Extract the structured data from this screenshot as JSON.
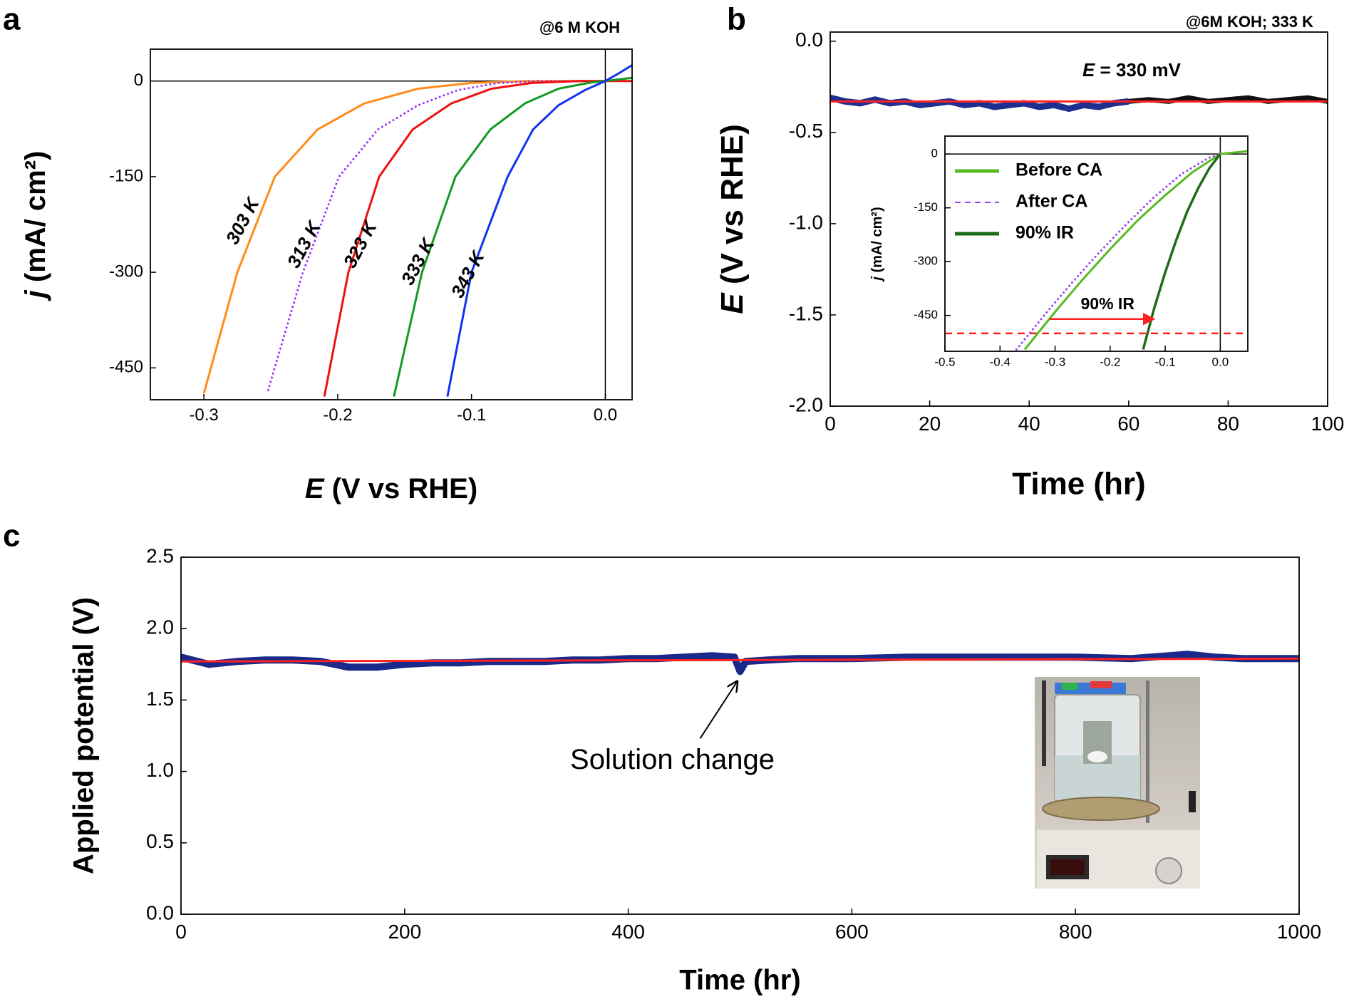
{
  "chart_data": [
    {
      "type": "line",
      "panel_label": "a",
      "title": "@6 M KOH",
      "xlabel": "E (V vs RHE)",
      "ylabel": "j (mA/ cm²)",
      "xlim": [
        -0.34,
        0.02
      ],
      "ylim": [
        -500,
        50
      ],
      "xticks": [
        -0.3,
        -0.2,
        -0.1,
        {
          "value": 0,
          "label": "0.0"
        }
      ],
      "yticks": [
        0,
        -150,
        -300,
        -450
      ],
      "zero_lines": true,
      "series": [
        {
          "name": "303 K",
          "color": "#ff8c1a",
          "x": [
            -0.3,
            -0.275,
            -0.247,
            -0.215,
            -0.18,
            -0.14,
            -0.1,
            -0.06,
            0.0
          ],
          "values": [
            -490,
            -300,
            -150,
            -76,
            -35,
            -12,
            -3,
            0,
            0
          ]
        },
        {
          "name": "313 K",
          "color": "#9933ff",
          "style": "dotted",
          "x": [
            -0.252,
            -0.226,
            -0.199,
            -0.17,
            -0.14,
            -0.11,
            -0.08,
            -0.05,
            0.0
          ],
          "values": [
            -485,
            -300,
            -150,
            -76,
            -38,
            -14,
            -3,
            0,
            0
          ]
        },
        {
          "name": "323 K",
          "color": "#ee1111",
          "x": [
            -0.21,
            -0.192,
            -0.169,
            -0.144,
            -0.115,
            -0.085,
            -0.055,
            -0.02,
            0.02
          ],
          "values": [
            -495,
            -300,
            -150,
            -76,
            -35,
            -12,
            -3,
            0,
            0
          ]
        },
        {
          "name": "333 K",
          "color": "#119922",
          "x": [
            -0.158,
            -0.137,
            -0.112,
            -0.086,
            -0.06,
            -0.035,
            -0.01,
            0.0,
            0.02
          ],
          "values": [
            -495,
            -300,
            -150,
            -76,
            -35,
            -12,
            -2,
            0,
            5
          ]
        },
        {
          "name": "343 K",
          "color": "#1133ee",
          "x": [
            -0.118,
            -0.1,
            -0.073,
            -0.054,
            -0.035,
            -0.015,
            0.0,
            0.01,
            0.02
          ],
          "values": [
            -495,
            -300,
            -150,
            -76,
            -38,
            -14,
            0,
            12,
            25
          ]
        }
      ]
    },
    {
      "type": "line",
      "panel_label": "b",
      "title": "@6M KOH; 333 K",
      "xlabel": "Time (hr)",
      "ylabel": "E (V vs RHE)",
      "annotation": "E = 330 mV",
      "xlim": [
        0,
        100
      ],
      "ylim": [
        -2.0,
        0.05
      ],
      "xticks": [
        0,
        20,
        40,
        60,
        80,
        100
      ],
      "yticks": [
        {
          "value": 0,
          "label": "0.0"
        },
        -0.5,
        {
          "value": -1,
          "label": "-1.0"
        },
        -1.5,
        {
          "value": -2,
          "label": "-2.0"
        }
      ],
      "series": [
        {
          "color": "#1f2f8f",
          "x": [
            0,
            3,
            6,
            9,
            12,
            15,
            18,
            21,
            24,
            27,
            30,
            33,
            36,
            39,
            42,
            45,
            48,
            51,
            54,
            57,
            60
          ],
          "values": [
            -0.31,
            -0.33,
            -0.34,
            -0.32,
            -0.34,
            -0.33,
            -0.35,
            -0.34,
            -0.33,
            -0.35,
            -0.34,
            -0.36,
            -0.35,
            -0.34,
            -0.36,
            -0.35,
            -0.37,
            -0.35,
            -0.36,
            -0.34,
            -0.33
          ]
        },
        {
          "color": "#111111",
          "x": [
            60,
            64,
            68,
            72,
            76,
            80,
            84,
            88,
            92,
            96,
            100
          ],
          "values": [
            -0.33,
            -0.32,
            -0.33,
            -0.31,
            -0.33,
            -0.32,
            -0.31,
            -0.33,
            -0.32,
            -0.31,
            -0.33
          ]
        },
        {
          "color": "#ff2020",
          "x": [
            0,
            100
          ],
          "values": [
            -0.33,
            -0.33
          ]
        }
      ]
    },
    {
      "type": "line",
      "ylabel": "j (mA/ cm²)",
      "xlim": [
        -0.5,
        0.05
      ],
      "ylim": [
        -550,
        50
      ],
      "xticks": [
        -0.5,
        -0.4,
        -0.3,
        -0.2,
        -0.1,
        {
          "value": 0,
          "label": "0.0"
        }
      ],
      "yticks": [
        0,
        -150,
        -300,
        -450
      ],
      "zero_lines": true,
      "legend": "upper left",
      "reference_line": {
        "y": -500,
        "color": "#ff2020",
        "style": "dashed"
      },
      "arrow": {
        "x": [
          -0.31,
          -0.12
        ],
        "y": -460,
        "label": "90% IR",
        "color": "#ff2020"
      },
      "series": [
        {
          "name": "Before CA",
          "color": "#55bb22",
          "x": [
            -0.355,
            -0.3,
            -0.25,
            -0.2,
            -0.15,
            -0.1,
            -0.05,
            0.0,
            0.05
          ],
          "values": [
            -545,
            -440,
            -350,
            -265,
            -185,
            -115,
            -50,
            0,
            8
          ]
        },
        {
          "name": "After CA",
          "color": "#9944ee",
          "style": "dotted",
          "x": [
            -0.37,
            -0.32,
            -0.27,
            -0.22,
            -0.17,
            -0.12,
            -0.07,
            -0.02,
            0.0
          ],
          "values": [
            -545,
            -450,
            -360,
            -275,
            -195,
            -120,
            -55,
            -10,
            0
          ]
        },
        {
          "name": "90% IR",
          "color": "#1f6b1a",
          "x": [
            -0.14,
            -0.12,
            -0.1,
            -0.08,
            -0.06,
            -0.04,
            -0.02,
            0.0
          ],
          "values": [
            -545,
            -430,
            -330,
            -240,
            -160,
            -95,
            -40,
            0
          ]
        }
      ]
    },
    {
      "type": "line",
      "panel_label": "c",
      "xlabel": "Time (hr)",
      "ylabel": "Applied potential (V)",
      "annotation": {
        "text": "Solution change",
        "x": 500,
        "y": 1.68
      },
      "xlim": [
        0,
        1000
      ],
      "ylim": [
        0,
        2.5
      ],
      "xticks": [
        0,
        200,
        400,
        600,
        800,
        1000
      ],
      "yticks": [
        {
          "value": 0,
          "label": "0.0"
        },
        0.5,
        {
          "value": 1,
          "label": "1.0"
        },
        1.5,
        {
          "value": 2,
          "label": "2.0"
        },
        2.5
      ],
      "series": [
        {
          "color": "#1a2a8a",
          "x": [
            0,
            25,
            50,
            75,
            100,
            125,
            150,
            175,
            200,
            225,
            250,
            275,
            300,
            325,
            350,
            375,
            400,
            425,
            450,
            475,
            495,
            500,
            505,
            525,
            550,
            600,
            650,
            700,
            750,
            800,
            850,
            900,
            925,
            950,
            1000
          ],
          "values": [
            1.8,
            1.75,
            1.77,
            1.78,
            1.78,
            1.77,
            1.73,
            1.73,
            1.75,
            1.76,
            1.76,
            1.77,
            1.77,
            1.77,
            1.78,
            1.78,
            1.79,
            1.79,
            1.8,
            1.81,
            1.8,
            1.7,
            1.77,
            1.78,
            1.79,
            1.79,
            1.8,
            1.8,
            1.8,
            1.8,
            1.79,
            1.82,
            1.8,
            1.79,
            1.79
          ]
        },
        {
          "color": "#ff2020",
          "x": [
            0,
            1000
          ],
          "values": [
            1.77,
            1.79
          ]
        }
      ]
    }
  ]
}
